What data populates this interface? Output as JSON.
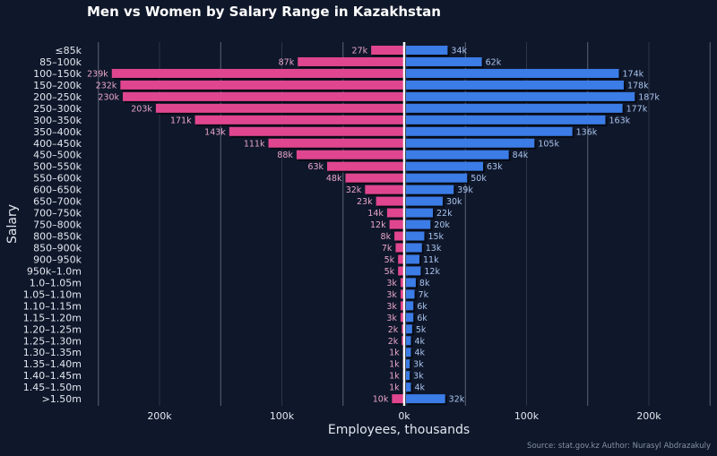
{
  "chart_data": {
    "type": "bar",
    "orientation": "horizontal-diverging",
    "title": "Men vs Women by Salary Range in Kazakhstan",
    "xlabel": "Employees, thousands",
    "ylabel": "Salary",
    "source_note": "Source: stat.gov.kz  Author: Nurasyl Abdrazakuly",
    "xlim": [
      -250,
      250
    ],
    "x_ticks": [
      -200,
      -100,
      0,
      100,
      200
    ],
    "x_tick_labels": [
      "200k",
      "100k",
      "0k",
      "100k",
      "200k"
    ],
    "grid": true,
    "legend": "none",
    "categories": [
      "≤85k",
      "85–100k",
      "100–150k",
      "150–200k",
      "200–250k",
      "250–300k",
      "300–350k",
      "350–400k",
      "400–450k",
      "450–500k",
      "500–550k",
      "550–600k",
      "600–650k",
      "650–700k",
      "700–750k",
      "750–800k",
      "800–850k",
      "850–900k",
      "900–950k",
      "950k–1.0m",
      "1.0–1.05m",
      "1.05–1.10m",
      "1.10–1.15m",
      "1.15–1.20m",
      "1.20–1.25m",
      "1.25–1.30m",
      "1.30–1.35m",
      "1.35–1.40m",
      "1.40–1.45m",
      "1.45–1.50m",
      ">1.50m"
    ],
    "series": [
      {
        "side": "left",
        "color": "#e0468f",
        "values": [
          27,
          87,
          239,
          232,
          230,
          203,
          171,
          143,
          111,
          88,
          63,
          48,
          32,
          23,
          14,
          12,
          8,
          7,
          5,
          5,
          3,
          3,
          3,
          3,
          2,
          2,
          1,
          1,
          1,
          1,
          10
        ]
      },
      {
        "side": "right",
        "color": "#3b7ce6",
        "values": [
          34,
          62,
          174,
          178,
          187,
          177,
          163,
          136,
          105,
          84,
          63,
          50,
          39,
          30,
          22,
          20,
          15,
          13,
          11,
          12,
          8,
          7,
          6,
          6,
          5,
          4,
          4,
          3,
          3,
          4,
          32
        ]
      }
    ]
  },
  "colors": {
    "background": "#0f172a",
    "zero_line": "#ffffff"
  }
}
